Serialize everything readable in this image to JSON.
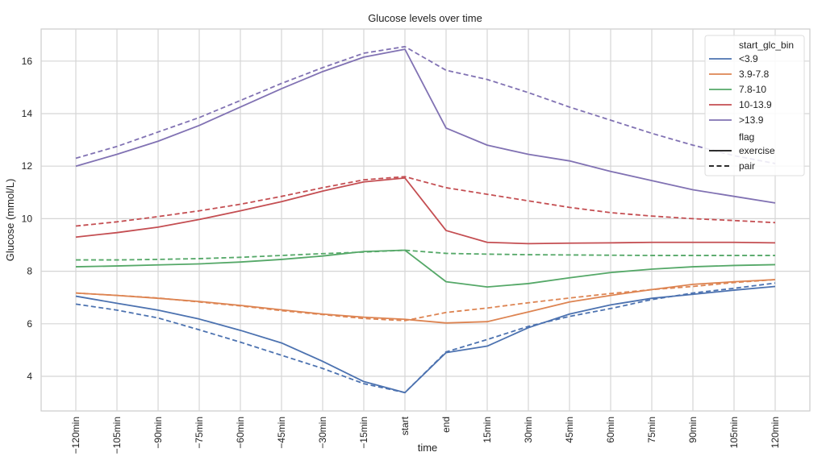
{
  "chart_data": {
    "type": "line",
    "title": "Glucose levels over time",
    "xlabel": "time",
    "ylabel": "Glucose (mmol/L)",
    "ylim": [
      2.68,
      17.2
    ],
    "yticks": [
      4,
      6,
      8,
      10,
      12,
      14,
      16
    ],
    "grid": true,
    "legend_placement": "top-right",
    "categories": [
      "−120min",
      "−105min",
      "−90min",
      "−75min",
      "−60min",
      "−45min",
      "−30min",
      "−15min",
      "start",
      "end",
      "15min",
      "30min",
      "45min",
      "60min",
      "75min",
      "90min",
      "105min",
      "120min"
    ],
    "legend": {
      "hue_title": "start_glc_bin",
      "style_title": "flag",
      "styles": [
        {
          "name": "exercise",
          "dash": "solid"
        },
        {
          "name": "pair",
          "dash": "dashed"
        }
      ]
    },
    "groups": [
      {
        "name": "<3.9",
        "color": "#4c72b0",
        "exercise": [
          7.05,
          6.78,
          6.52,
          6.18,
          5.75,
          5.27,
          4.57,
          3.8,
          3.38,
          4.9,
          5.15,
          5.85,
          6.37,
          6.72,
          6.97,
          7.12,
          7.28,
          7.42
        ],
        "pair": [
          6.75,
          6.52,
          6.22,
          5.77,
          5.3,
          4.8,
          4.3,
          3.72,
          3.38,
          4.93,
          5.4,
          5.9,
          6.28,
          6.58,
          6.92,
          7.17,
          7.35,
          7.55
        ]
      },
      {
        "name": "3.9-7.8",
        "color": "#dd8452",
        "exercise": [
          7.17,
          7.08,
          6.97,
          6.85,
          6.7,
          6.53,
          6.37,
          6.25,
          6.17,
          6.03,
          6.08,
          6.45,
          6.83,
          7.08,
          7.3,
          7.5,
          7.6,
          7.68
        ],
        "pair": [
          7.17,
          7.08,
          6.98,
          6.83,
          6.68,
          6.5,
          6.35,
          6.2,
          6.12,
          6.43,
          6.6,
          6.8,
          6.98,
          7.15,
          7.3,
          7.42,
          7.57,
          7.68
        ]
      },
      {
        "name": "7.8-10",
        "color": "#55a868",
        "exercise": [
          8.17,
          8.2,
          8.24,
          8.28,
          8.35,
          8.45,
          8.58,
          8.75,
          8.8,
          7.6,
          7.4,
          7.53,
          7.75,
          7.95,
          8.08,
          8.17,
          8.22,
          8.25
        ],
        "pair": [
          8.43,
          8.43,
          8.45,
          8.48,
          8.53,
          8.6,
          8.67,
          8.73,
          8.8,
          8.68,
          8.65,
          8.63,
          8.62,
          8.61,
          8.6,
          8.6,
          8.6,
          8.6
        ]
      },
      {
        "name": "10-13.9",
        "color": "#c44e52",
        "exercise": [
          9.3,
          9.47,
          9.68,
          9.97,
          10.3,
          10.65,
          11.05,
          11.4,
          11.55,
          9.55,
          9.1,
          9.05,
          9.07,
          9.08,
          9.1,
          9.1,
          9.1,
          9.08
        ],
        "pair": [
          9.72,
          9.88,
          10.08,
          10.3,
          10.55,
          10.85,
          11.18,
          11.48,
          11.6,
          11.18,
          10.93,
          10.68,
          10.43,
          10.23,
          10.1,
          10.0,
          9.93,
          9.85
        ]
      },
      {
        "name": ">13.9",
        "color": "#8172b3",
        "exercise": [
          12.0,
          12.45,
          12.95,
          13.55,
          14.25,
          14.95,
          15.6,
          16.15,
          16.45,
          13.45,
          12.8,
          12.45,
          12.2,
          11.8,
          11.45,
          11.1,
          10.85,
          10.6
        ],
        "pair": [
          12.3,
          12.75,
          13.3,
          13.85,
          14.5,
          15.15,
          15.75,
          16.3,
          16.55,
          15.65,
          15.3,
          14.8,
          14.25,
          13.75,
          13.25,
          12.8,
          12.4,
          12.1
        ]
      }
    ]
  }
}
